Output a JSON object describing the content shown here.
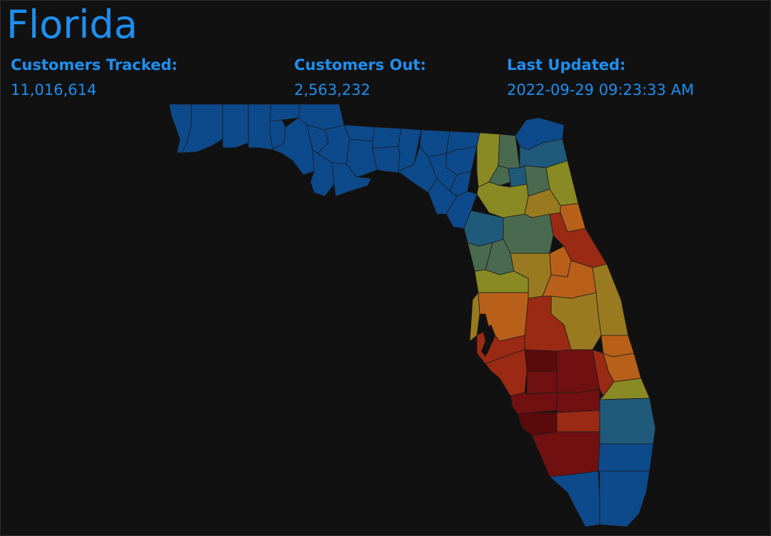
{
  "header": {
    "state_name": "Florida"
  },
  "stats": {
    "tracked_label": "Customers Tracked:",
    "tracked_value": "11,016,614",
    "out_label": "Customers Out:",
    "out_value": "2,563,232",
    "updated_label": "Last Updated:",
    "updated_value": "2022-09-29 09:23:33 AM"
  },
  "colors": {
    "background": "#111111",
    "text_accent": "#1e8ff0",
    "outage_scale": [
      "#0d4a8c",
      "#1f5a7a",
      "#4a6a50",
      "#8a8a25",
      "#9a7a20",
      "#b8601a",
      "#9a2a14",
      "#701010",
      "#5a0a0a"
    ]
  }
}
